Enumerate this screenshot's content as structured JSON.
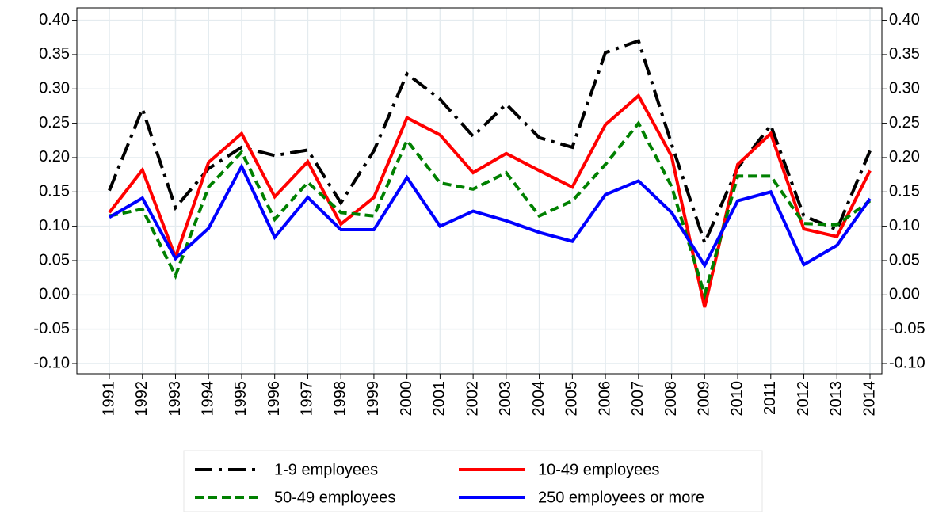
{
  "chart_data": {
    "type": "line",
    "categories": [
      "1991",
      "1992",
      "1993",
      "1994",
      "1995",
      "1996",
      "1997",
      "1998",
      "1999",
      "2000",
      "2001",
      "2002",
      "2003",
      "2004",
      "2005",
      "2006",
      "2007",
      "2008",
      "2009",
      "2010",
      "2011",
      "2012",
      "2013",
      "2014"
    ],
    "series": [
      {
        "name": "1-9 employees",
        "color": "#000000",
        "dash": "dash-dot",
        "values": [
          0.152,
          0.271,
          0.127,
          0.184,
          0.215,
          0.203,
          0.211,
          0.134,
          0.21,
          0.322,
          0.285,
          0.231,
          0.278,
          0.229,
          0.215,
          0.353,
          0.37,
          0.22,
          0.076,
          0.185,
          0.247,
          0.115,
          0.095,
          0.21
        ]
      },
      {
        "name": "10-49 employees",
        "color": "#ff0000",
        "dash": "solid",
        "values": [
          0.12,
          0.182,
          0.055,
          0.193,
          0.235,
          0.143,
          0.194,
          0.103,
          0.142,
          0.258,
          0.233,
          0.178,
          0.206,
          0.181,
          0.157,
          0.248,
          0.29,
          0.202,
          -0.018,
          0.19,
          0.235,
          0.096,
          0.085,
          0.181
        ]
      },
      {
        "name": "50-49 employees",
        "color": "#008000",
        "dash": "dashed",
        "values": [
          0.115,
          0.125,
          0.028,
          0.157,
          0.208,
          0.11,
          0.164,
          0.12,
          0.115,
          0.225,
          0.163,
          0.154,
          0.178,
          0.115,
          0.137,
          0.19,
          0.25,
          0.158,
          0.0,
          0.173,
          0.173,
          0.104,
          0.102,
          0.137
        ]
      },
      {
        "name": "250 employees or more",
        "color": "#0000ff",
        "dash": "solid",
        "values": [
          0.113,
          0.141,
          0.053,
          0.097,
          0.187,
          0.084,
          0.142,
          0.095,
          0.095,
          0.171,
          0.1,
          0.122,
          0.108,
          0.091,
          0.078,
          0.146,
          0.166,
          0.12,
          0.043,
          0.137,
          0.15,
          0.044,
          0.072,
          0.14
        ]
      }
    ],
    "ylim": [
      -0.115,
      0.418
    ],
    "yticks": [
      {
        "value": -0.1,
        "label": "-0.10"
      },
      -0.05,
      {
        "value": 0,
        "label": "0.00"
      },
      0.05,
      {
        "value": 0.1,
        "label": "0.10"
      },
      0.15,
      {
        "value": 0.2,
        "label": "0.20"
      },
      0.25,
      {
        "value": 0.3,
        "label": "0.30"
      },
      0.35,
      {
        "value": 0.4,
        "label": "0.40"
      }
    ],
    "grid": true,
    "legend": "bottom"
  }
}
